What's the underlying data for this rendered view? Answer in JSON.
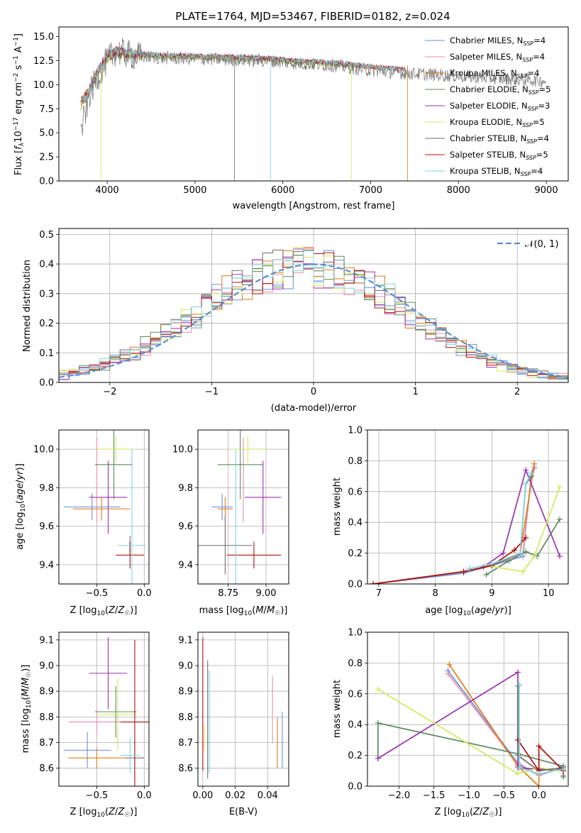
{
  "colors": {
    "chabrier_miles": "#6a8fdc",
    "salpeter_miles": "#e88fa8",
    "kroupa_miles": "#e07b1a",
    "chabrier_elodie": "#5b8a5e",
    "salpeter_elodie": "#9a32b0",
    "kroupa_elodie": "#d4e85a",
    "chabrier_stelib": "#6e6e6e",
    "salpeter_stelib": "#b01010",
    "kroupa_stelib": "#7fd4dc"
  },
  "chart_data": [
    {
      "id": "spectrum",
      "type": "line",
      "title": "PLATE=1764, MJD=53467, FIBERID=0182, z=0.024",
      "xlabel": "wavelength [Angstrom, rest frame]",
      "ylabel": "Flux [f_λ10^-17 erg cm^-2 s^-1 A^-1]",
      "xlim": [
        3450,
        9250
      ],
      "ylim": [
        0,
        16
      ],
      "xticks": [
        4000,
        5000,
        6000,
        7000,
        8000,
        9000
      ],
      "yticks": [
        0.0,
        2.5,
        5.0,
        7.5,
        10.0,
        12.5,
        15.0
      ],
      "legend_position": "upper-right",
      "series": [
        {
          "name": "Chabrier MILES, N_SSP=4",
          "x": [
            3700,
            3800,
            3900,
            4000,
            4100,
            4300,
            4600,
            5000,
            5400,
            5800,
            6200,
            6600,
            7000,
            7400
          ],
          "y": [
            8.0,
            9.5,
            11.5,
            12.8,
            13.4,
            13.2,
            13.0,
            12.9,
            12.8,
            12.7,
            12.4,
            12.2,
            11.8,
            11.5
          ]
        },
        {
          "name": "Salpeter MILES, N_SSP=4",
          "x": [
            3700,
            3800,
            3900,
            4000,
            4100,
            4300,
            4600,
            5000,
            5400,
            5800,
            6200,
            6600,
            7000,
            7400
          ],
          "y": [
            8.1,
            9.6,
            11.6,
            12.9,
            13.5,
            13.3,
            13.1,
            13.0,
            12.9,
            12.8,
            12.5,
            12.3,
            11.9,
            11.6
          ]
        },
        {
          "name": "Kroupa MILES, N_SSP=4",
          "x": [
            3700,
            3800,
            3900,
            4000,
            4100,
            4300,
            4600,
            5000,
            5400,
            5800,
            6200,
            6600,
            7000,
            7400
          ],
          "y": [
            8.0,
            9.5,
            11.5,
            12.8,
            13.4,
            13.2,
            13.0,
            12.9,
            12.8,
            12.7,
            12.4,
            12.2,
            11.8,
            11.5
          ]
        },
        {
          "name": "Chabrier ELODIE, N_SSP=5",
          "x": [
            3700,
            3800,
            3900,
            4000,
            4100,
            4300,
            4600,
            5000,
            5400,
            5800,
            6200,
            6600,
            6800
          ],
          "y": [
            7.8,
            9.4,
            11.4,
            12.7,
            13.3,
            13.1,
            12.9,
            12.8,
            12.7,
            12.6,
            12.3,
            12.1,
            12.0
          ]
        },
        {
          "name": "Salpeter ELODIE, N_SSP=3",
          "x": [
            3700,
            3800,
            3900,
            4000,
            4100,
            4300,
            4600,
            5000,
            5400,
            5800,
            6200,
            6600,
            6800
          ],
          "y": [
            7.9,
            9.5,
            11.5,
            12.8,
            13.4,
            13.2,
            13.0,
            12.9,
            12.8,
            12.7,
            12.4,
            12.2,
            12.1
          ]
        },
        {
          "name": "Kroupa ELODIE, N_SSP=5",
          "x": [
            3700,
            3800,
            3900,
            4000,
            4100,
            4300,
            4600,
            5000,
            5400,
            5800,
            6200,
            6600,
            6800
          ],
          "y": [
            7.8,
            9.4,
            11.4,
            12.7,
            13.3,
            13.1,
            12.9,
            12.8,
            12.7,
            12.6,
            12.3,
            12.1,
            12.0
          ]
        },
        {
          "name": "Chabrier STELIB, N_SSP=4",
          "x": [
            3700,
            3800,
            3900,
            4000,
            4100,
            4300,
            4600,
            5000,
            5400,
            5800,
            6200,
            6600,
            7000,
            7400,
            7800,
            8200,
            8600,
            9000
          ],
          "y": [
            5.0,
            9.0,
            11.0,
            12.5,
            13.5,
            13.0,
            12.8,
            12.7,
            12.6,
            12.5,
            12.2,
            12.0,
            11.5,
            11.2,
            11.0,
            10.8,
            10.6,
            10.4
          ]
        },
        {
          "name": "Salpeter STELIB, N_SSP=5",
          "x": [
            3700,
            3800,
            3900,
            4000,
            4100,
            4300,
            4600,
            5000,
            5400,
            5800,
            6200,
            6600,
            7000,
            7400
          ],
          "y": [
            8.2,
            9.6,
            11.6,
            12.8,
            13.5,
            13.3,
            13.1,
            13.0,
            12.9,
            12.8,
            12.5,
            12.3,
            11.9,
            11.6
          ]
        },
        {
          "name": "Kroupa STELIB, N_SSP=4",
          "x": [
            3700,
            3800,
            3900,
            4000,
            4100,
            4300,
            4600,
            5000,
            5400,
            5800,
            6200,
            6600,
            7000,
            7400
          ],
          "y": [
            8.0,
            9.5,
            11.5,
            12.9,
            13.6,
            13.3,
            13.1,
            13.0,
            12.9,
            12.8,
            12.5,
            12.3,
            11.9,
            11.6
          ]
        }
      ]
    },
    {
      "id": "residuals",
      "type": "histogram",
      "xlabel": "(data-model)/error",
      "ylabel": "Normed distribution",
      "xlim": [
        -2.5,
        2.5
      ],
      "ylim": [
        0,
        0.52
      ],
      "xticks": [
        -2,
        -1,
        0,
        1,
        2
      ],
      "yticks": [
        0.0,
        0.1,
        0.2,
        0.3,
        0.4,
        0.5
      ],
      "legend_position": "upper-right",
      "reference": {
        "name": "𝒩(0, 1)",
        "mean": 0,
        "sigma": 1
      },
      "bin_width": 0.1
    },
    {
      "id": "age-vs-z",
      "type": "scatter",
      "xlabel": "Z [log10(Z/Z☉)]",
      "ylabel": "age [log10(age/yr)]",
      "xlim": [
        -0.9,
        0.05
      ],
      "ylim": [
        9.3,
        10.1
      ],
      "xticks": [
        -0.5,
        0.0
      ],
      "yticks": [
        9.4,
        9.6,
        9.8,
        10.0
      ],
      "points": [
        {
          "model": "chabrier_miles",
          "x": -0.55,
          "y": 9.7,
          "xerr": 0.3,
          "yerr": 0.07
        },
        {
          "model": "salpeter_miles",
          "x": -0.5,
          "y": 9.84,
          "xerr": 0.0,
          "yerr": 0.22
        },
        {
          "model": "kroupa_miles",
          "x": -0.45,
          "y": 9.69,
          "xerr": 0.3,
          "yerr": 0.06
        },
        {
          "model": "chabrier_elodie",
          "x": -0.32,
          "y": 9.92,
          "xerr": 0.2,
          "yerr": 0.18
        },
        {
          "model": "salpeter_elodie",
          "x": -0.38,
          "y": 9.75,
          "xerr": 0.2,
          "yerr": 0.19
        },
        {
          "model": "kroupa_elodie",
          "x": -0.3,
          "y": 10.0,
          "xerr": 0.2,
          "yerr": 0.07
        },
        {
          "model": "chabrier_stelib",
          "x": -0.15,
          "y": 9.5,
          "xerr": 0.0,
          "yerr": 0.05
        },
        {
          "model": "salpeter_stelib",
          "x": -0.15,
          "y": 9.45,
          "xerr": 0.15,
          "yerr": 0.07
        },
        {
          "model": "kroupa_stelib",
          "x": -0.13,
          "y": 9.5,
          "xerr": 0.15,
          "yerr": 0.5
        }
      ]
    },
    {
      "id": "age-vs-mass",
      "type": "scatter",
      "xlabel": "mass [log10(M/M☉)]",
      "ylabel": "",
      "xlim": [
        8.55,
        9.15
      ],
      "ylim": [
        9.3,
        10.1
      ],
      "xticks": [
        8.75,
        9.0
      ],
      "yticks": [
        9.4,
        9.6,
        9.8,
        10.0
      ],
      "points": [
        {
          "model": "chabrier_miles",
          "x": 8.71,
          "y": 9.7,
          "xerr": 0.07,
          "yerr": 0.07
        },
        {
          "model": "salpeter_miles",
          "x": 8.85,
          "y": 9.84,
          "xerr": 0.0,
          "yerr": 0.22
        },
        {
          "model": "kroupa_miles",
          "x": 8.73,
          "y": 9.69,
          "xerr": 0.05,
          "yerr": 0.06
        },
        {
          "model": "chabrier_elodie",
          "x": 8.83,
          "y": 9.92,
          "xerr": 0.15,
          "yerr": 0.18
        },
        {
          "model": "salpeter_elodie",
          "x": 8.98,
          "y": 9.75,
          "xerr": 0.12,
          "yerr": 0.19
        },
        {
          "model": "kroupa_elodie",
          "x": 8.88,
          "y": 10.0,
          "xerr": 0.12,
          "yerr": 0.07
        },
        {
          "model": "chabrier_stelib",
          "x": 8.73,
          "y": 9.5,
          "xerr": 0.18,
          "yerr": 0.15
        },
        {
          "model": "salpeter_stelib",
          "x": 8.92,
          "y": 9.45,
          "xerr": 0.18,
          "yerr": 0.07
        },
        {
          "model": "kroupa_stelib",
          "x": 8.8,
          "y": 9.5,
          "xerr": 0.0,
          "yerr": 0.5
        }
      ]
    },
    {
      "id": "mass-weight-vs-age",
      "type": "line",
      "xlabel": "age [log10(age/yr)]",
      "ylabel": "mass weight",
      "xlim": [
        6.8,
        10.35
      ],
      "ylim": [
        0,
        1
      ],
      "xticks": [
        7,
        8,
        9,
        10
      ],
      "yticks": [
        0.0,
        0.2,
        0.4,
        0.6,
        0.8,
        1.0
      ],
      "series": [
        {
          "model": "chabrier_miles",
          "x": [
            6.9,
            8.5,
            9.0,
            9.55,
            9.7,
            9.75
          ],
          "y": [
            0.0,
            0.07,
            0.12,
            0.18,
            0.72,
            0.76
          ]
        },
        {
          "model": "salpeter_miles",
          "x": [
            6.9,
            8.5,
            9.0,
            9.55,
            9.7,
            9.75
          ],
          "y": [
            0.0,
            0.08,
            0.12,
            0.2,
            0.7,
            0.75
          ]
        },
        {
          "model": "kroupa_miles",
          "x": [
            6.9,
            8.5,
            9.0,
            9.5,
            9.75
          ],
          "y": [
            0.0,
            0.08,
            0.12,
            0.2,
            0.78
          ]
        },
        {
          "model": "chabrier_elodie",
          "x": [
            8.9,
            9.3,
            9.6,
            9.8,
            10.2
          ],
          "y": [
            0.06,
            0.15,
            0.21,
            0.18,
            0.42
          ]
        },
        {
          "model": "salpeter_elodie",
          "x": [
            8.85,
            9.2,
            9.6,
            10.2
          ],
          "y": [
            0.11,
            0.2,
            0.74,
            0.18
          ]
        },
        {
          "model": "kroupa_elodie",
          "x": [
            8.9,
            9.55,
            9.75,
            10.2
          ],
          "y": [
            0.12,
            0.08,
            0.18,
            0.63
          ]
        },
        {
          "model": "chabrier_stelib",
          "x": [
            9.0,
            9.5,
            9.6,
            9.7
          ],
          "y": [
            0.12,
            0.2,
            0.65,
            0.7
          ]
        },
        {
          "model": "salpeter_stelib",
          "x": [
            6.9,
            8.5,
            9.0,
            9.4,
            9.6
          ],
          "y": [
            0.0,
            0.08,
            0.12,
            0.22,
            0.3
          ]
        },
        {
          "model": "kroupa_stelib",
          "x": [
            8.6,
            9.0,
            9.5,
            9.6,
            9.7
          ],
          "y": [
            0.1,
            0.13,
            0.2,
            0.65,
            0.72
          ]
        }
      ]
    },
    {
      "id": "mass-vs-z",
      "type": "scatter",
      "xlabel": "Z [log10(Z/Z☉)]",
      "ylabel": "mass [log10(M/M☉)]",
      "xlim": [
        -0.9,
        0.05
      ],
      "ylim": [
        8.53,
        9.13
      ],
      "xticks": [
        -0.5,
        0.0
      ],
      "yticks": [
        8.6,
        8.7,
        8.8,
        8.9,
        9.0,
        9.1
      ],
      "points": [
        {
          "model": "chabrier_miles",
          "x": -0.6,
          "y": 8.67,
          "xerr": 0.25,
          "yerr": 0.07
        },
        {
          "model": "salpeter_miles",
          "x": -0.5,
          "y": 8.78,
          "xerr": 0.3,
          "yerr": 0.05
        },
        {
          "model": "kroupa_miles",
          "x": -0.5,
          "y": 8.64,
          "xerr": 0.3,
          "yerr": 0.04
        },
        {
          "model": "chabrier_elodie",
          "x": -0.3,
          "y": 8.82,
          "xerr": 0.22,
          "yerr": 0.1
        },
        {
          "model": "salpeter_elodie",
          "x": -0.38,
          "y": 8.97,
          "xerr": 0.2,
          "yerr": 0.14
        },
        {
          "model": "kroupa_elodie",
          "x": -0.28,
          "y": 8.81,
          "xerr": 0.2,
          "yerr": 0.14
        },
        {
          "model": "chabrier_stelib",
          "x": -0.1,
          "y": 8.64,
          "xerr": 0.1,
          "yerr": 0.08
        },
        {
          "model": "salpeter_stelib",
          "x": -0.1,
          "y": 8.78,
          "xerr": 0.15,
          "yerr": 0.32
        },
        {
          "model": "kroupa_stelib",
          "x": -0.15,
          "y": 8.65,
          "xerr": 0.1,
          "yerr": 0.07
        }
      ]
    },
    {
      "id": "mass-vs-ebv",
      "type": "scatter",
      "xlabel": "E(B-V)",
      "ylabel": "",
      "xlim": [
        -0.003,
        0.053
      ],
      "ylim": [
        8.53,
        9.13
      ],
      "xticks": [
        0.0,
        0.02,
        0.04
      ],
      "yticks": [
        8.6,
        8.7,
        8.8,
        8.9,
        9.0,
        9.1
      ],
      "points": [
        {
          "model": "chabrier_miles",
          "x": 0.049,
          "y": 8.71,
          "xerr": 0.0,
          "yerr": 0.11
        },
        {
          "model": "salpeter_miles",
          "x": 0.043,
          "y": 8.83,
          "xerr": 0.0,
          "yerr": 0.13
        },
        {
          "model": "kroupa_miles",
          "x": 0.046,
          "y": 8.7,
          "xerr": 0.0,
          "yerr": 0.1
        },
        {
          "model": "chabrier_stelib",
          "x": 0.003,
          "y": 8.79,
          "xerr": 0.0,
          "yerr": 0.23
        },
        {
          "model": "salpeter_stelib",
          "x": 0.0,
          "y": 8.85,
          "xerr": 0.0,
          "yerr": 0.26
        },
        {
          "model": "kroupa_stelib",
          "x": 0.004,
          "y": 8.78,
          "xerr": 0.0,
          "yerr": 0.2
        },
        {
          "model": "kroupa_elodie",
          "x": 0.001,
          "y": 8.72,
          "xerr": 0.0,
          "yerr": 0.05
        }
      ]
    },
    {
      "id": "mass-weight-vs-z",
      "type": "line",
      "xlabel": "Z [log10(Z/Z☉)]",
      "ylabel": "mass weight",
      "xlim": [
        -2.45,
        0.42
      ],
      "ylim": [
        0,
        1
      ],
      "xticks": [
        -2.0,
        -1.5,
        -1.0,
        -0.5,
        0.0
      ],
      "yticks": [
        0.0,
        0.2,
        0.4,
        0.6,
        0.8,
        1.0
      ],
      "series": [
        {
          "model": "chabrier_miles",
          "x": [
            -1.3,
            -0.3,
            0.0,
            0.35,
            0.35
          ],
          "y": [
            0.75,
            0.15,
            0.07,
            0.13,
            0.07
          ]
        },
        {
          "model": "salpeter_miles",
          "x": [
            -1.3,
            -0.3,
            0.0,
            0.35,
            0.35
          ],
          "y": [
            0.73,
            0.14,
            0.07,
            0.12,
            0.07
          ]
        },
        {
          "model": "kroupa_miles",
          "x": [
            -1.28,
            -0.3,
            0.0,
            0.0,
            0.35
          ],
          "y": [
            0.79,
            0.13,
            0.0,
            0.11,
            0.1
          ]
        },
        {
          "model": "chabrier_elodie",
          "x": [
            -2.3,
            -2.3,
            -0.3,
            0.35,
            0.35
          ],
          "y": [
            0.18,
            0.41,
            0.21,
            0.13,
            0.06
          ]
        },
        {
          "model": "salpeter_elodie",
          "x": [
            -2.3,
            -0.3,
            -0.3,
            0.0,
            0.35
          ],
          "y": [
            0.18,
            0.74,
            0.12,
            0.11,
            0.11
          ]
        },
        {
          "model": "kroupa_elodie",
          "x": [
            -2.3,
            -0.3,
            0.0,
            0.35
          ],
          "y": [
            0.63,
            0.08,
            0.12,
            0.1
          ]
        },
        {
          "model": "chabrier_stelib",
          "x": [
            -0.3,
            -0.3,
            0.0,
            0.35
          ],
          "y": [
            0.65,
            0.2,
            0.1,
            0.12
          ]
        },
        {
          "model": "salpeter_stelib",
          "x": [
            -0.3,
            0.0,
            0.0,
            0.35
          ],
          "y": [
            0.3,
            0.1,
            0.26,
            0.1
          ]
        },
        {
          "model": "kroupa_stelib",
          "x": [
            -0.28,
            -0.28,
            0.0,
            0.35
          ],
          "y": [
            0.66,
            0.12,
            0.08,
            0.11
          ]
        }
      ]
    }
  ]
}
